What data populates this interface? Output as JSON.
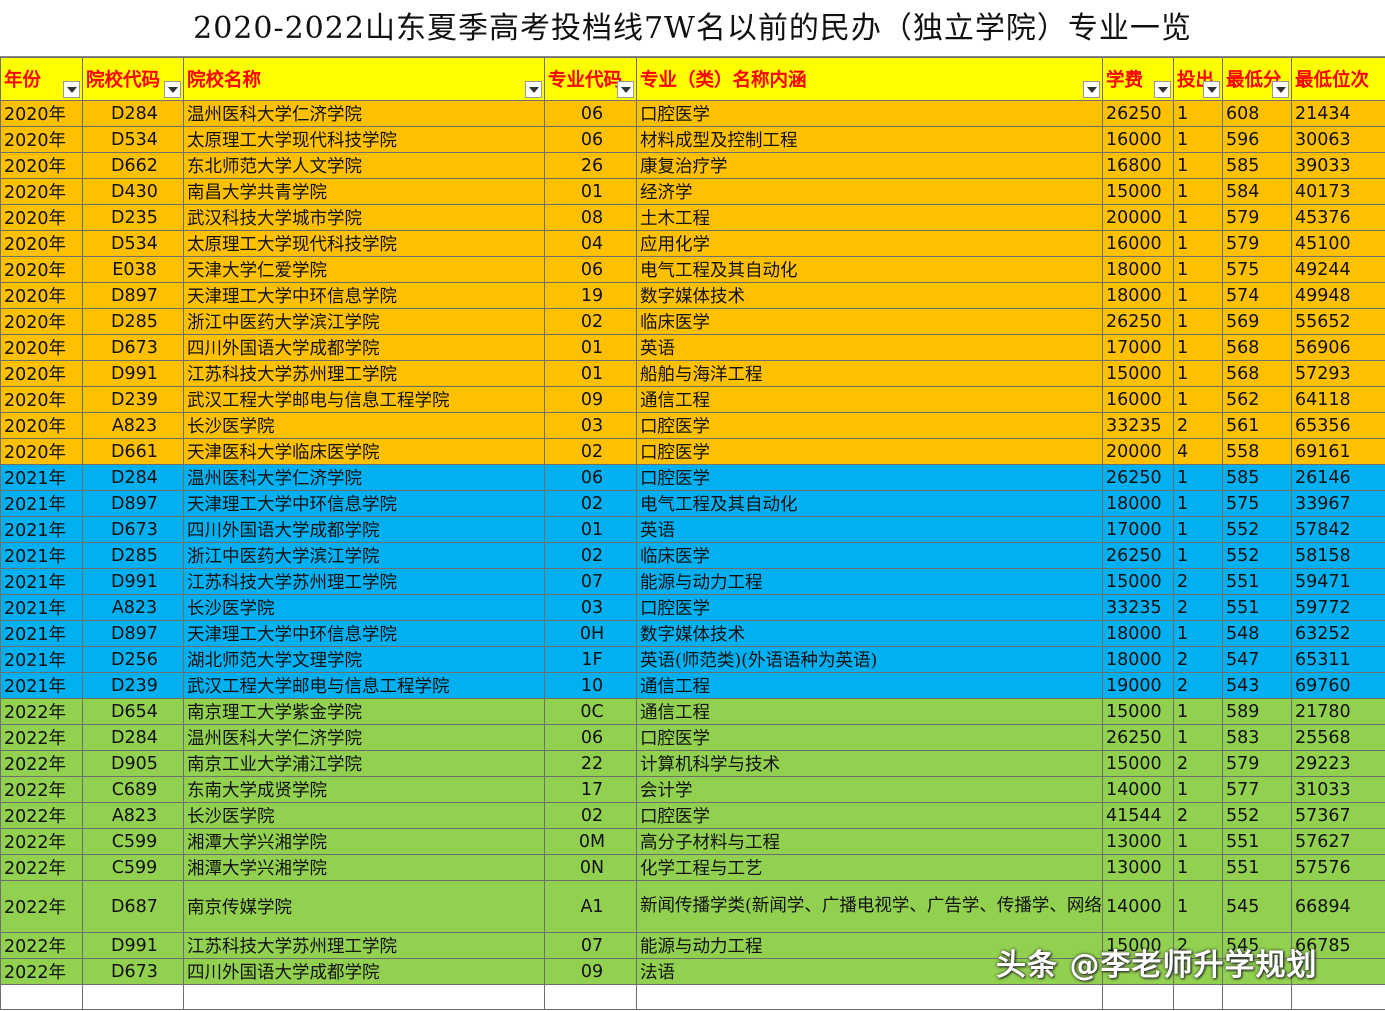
{
  "title": "2020-2022山东夏季高考投档线7W名以前的民办（独立学院）专业一览",
  "headers": [
    "年份",
    "院校代码",
    "院校名称",
    "专业代码",
    "专业（类）名称内涵",
    "学费",
    "投出",
    "最低分",
    "最低位次"
  ],
  "rows": [
    {
      "year": "2020年",
      "code": "D284",
      "school": "温州医科大学仁济学院",
      "mcode": "06",
      "major": "口腔医学",
      "fee": "26250",
      "plan": "1",
      "score": "608",
      "rank": "21434",
      "group": "y2020"
    },
    {
      "year": "2020年",
      "code": "D534",
      "school": "太原理工大学现代科技学院",
      "mcode": "06",
      "major": "材料成型及控制工程",
      "fee": "16000",
      "plan": "1",
      "score": "596",
      "rank": "30063",
      "group": "y2020"
    },
    {
      "year": "2020年",
      "code": "D662",
      "school": "东北师范大学人文学院",
      "mcode": "26",
      "major": "康复治疗学",
      "fee": "16800",
      "plan": "1",
      "score": "585",
      "rank": "39033",
      "group": "y2020"
    },
    {
      "year": "2020年",
      "code": "D430",
      "school": "南昌大学共青学院",
      "mcode": "01",
      "major": "经济学",
      "fee": "15000",
      "plan": "1",
      "score": "584",
      "rank": "40173",
      "group": "y2020"
    },
    {
      "year": "2020年",
      "code": "D235",
      "school": "武汉科技大学城市学院",
      "mcode": "08",
      "major": "土木工程",
      "fee": "20000",
      "plan": "1",
      "score": "579",
      "rank": "45376",
      "group": "y2020"
    },
    {
      "year": "2020年",
      "code": "D534",
      "school": "太原理工大学现代科技学院",
      "mcode": "04",
      "major": "应用化学",
      "fee": "16000",
      "plan": "1",
      "score": "579",
      "rank": "45100",
      "group": "y2020"
    },
    {
      "year": "2020年",
      "code": "E038",
      "school": "天津大学仁爱学院",
      "mcode": "06",
      "major": "电气工程及其自动化",
      "fee": "18000",
      "plan": "1",
      "score": "575",
      "rank": "49244",
      "group": "y2020"
    },
    {
      "year": "2020年",
      "code": "D897",
      "school": "天津理工大学中环信息学院",
      "mcode": "19",
      "major": "数字媒体技术",
      "fee": "18000",
      "plan": "1",
      "score": "574",
      "rank": "49948",
      "group": "y2020"
    },
    {
      "year": "2020年",
      "code": "D285",
      "school": "浙江中医药大学滨江学院",
      "mcode": "02",
      "major": "临床医学",
      "fee": "26250",
      "plan": "1",
      "score": "569",
      "rank": "55652",
      "group": "y2020"
    },
    {
      "year": "2020年",
      "code": "D673",
      "school": "四川外国语大学成都学院",
      "mcode": "01",
      "major": "英语",
      "fee": "17000",
      "plan": "1",
      "score": "568",
      "rank": "56906",
      "group": "y2020"
    },
    {
      "year": "2020年",
      "code": "D991",
      "school": "江苏科技大学苏州理工学院",
      "mcode": "01",
      "major": "船舶与海洋工程",
      "fee": "15000",
      "plan": "1",
      "score": "568",
      "rank": "57293",
      "group": "y2020"
    },
    {
      "year": "2020年",
      "code": "D239",
      "school": "武汉工程大学邮电与信息工程学院",
      "mcode": "09",
      "major": "通信工程",
      "fee": "16000",
      "plan": "1",
      "score": "562",
      "rank": "64118",
      "group": "y2020"
    },
    {
      "year": "2020年",
      "code": "A823",
      "school": "长沙医学院",
      "mcode": "03",
      "major": "口腔医学",
      "fee": "33235",
      "plan": "2",
      "score": "561",
      "rank": "65356",
      "group": "y2020"
    },
    {
      "year": "2020年",
      "code": "D661",
      "school": "天津医科大学临床医学院",
      "mcode": "02",
      "major": "口腔医学",
      "fee": "20000",
      "plan": "4",
      "score": "558",
      "rank": "69161",
      "group": "y2020"
    },
    {
      "year": "2021年",
      "code": "D284",
      "school": "温州医科大学仁济学院",
      "mcode": "06",
      "major": "口腔医学",
      "fee": "26250",
      "plan": "1",
      "score": "585",
      "rank": "26146",
      "group": "y2021"
    },
    {
      "year": "2021年",
      "code": "D897",
      "school": "天津理工大学中环信息学院",
      "mcode": "02",
      "major": "电气工程及其自动化",
      "fee": "18000",
      "plan": "1",
      "score": "575",
      "rank": "33967",
      "group": "y2021"
    },
    {
      "year": "2021年",
      "code": "D673",
      "school": "四川外国语大学成都学院",
      "mcode": "01",
      "major": "英语",
      "fee": "17000",
      "plan": "1",
      "score": "552",
      "rank": "57842",
      "group": "y2021"
    },
    {
      "year": "2021年",
      "code": "D285",
      "school": "浙江中医药大学滨江学院",
      "mcode": "02",
      "major": "临床医学",
      "fee": "26250",
      "plan": "1",
      "score": "552",
      "rank": "58158",
      "group": "y2021"
    },
    {
      "year": "2021年",
      "code": "D991",
      "school": "江苏科技大学苏州理工学院",
      "mcode": "07",
      "major": "能源与动力工程",
      "fee": "15000",
      "plan": "2",
      "score": "551",
      "rank": "59471",
      "group": "y2021"
    },
    {
      "year": "2021年",
      "code": "A823",
      "school": "长沙医学院",
      "mcode": "03",
      "major": "口腔医学",
      "fee": "33235",
      "plan": "2",
      "score": "551",
      "rank": "59772",
      "group": "y2021"
    },
    {
      "year": "2021年",
      "code": "D897",
      "school": "天津理工大学中环信息学院",
      "mcode": "0H",
      "major": "数字媒体技术",
      "fee": "18000",
      "plan": "1",
      "score": "548",
      "rank": "63252",
      "group": "y2021"
    },
    {
      "year": "2021年",
      "code": "D256",
      "school": "湖北师范大学文理学院",
      "mcode": "1F",
      "major": "英语(师范类)(外语语种为英语)",
      "fee": "18000",
      "plan": "2",
      "score": "547",
      "rank": "65311",
      "group": "y2021"
    },
    {
      "year": "2021年",
      "code": "D239",
      "school": "武汉工程大学邮电与信息工程学院",
      "mcode": "10",
      "major": "通信工程",
      "fee": "19000",
      "plan": "2",
      "score": "543",
      "rank": "69760",
      "group": "y2021"
    },
    {
      "year": "2022年",
      "code": "D654",
      "school": "南京理工大学紫金学院",
      "mcode": "0C",
      "major": "通信工程",
      "fee": "15000",
      "plan": "1",
      "score": "589",
      "rank": "21780",
      "group": "y2022"
    },
    {
      "year": "2022年",
      "code": "D284",
      "school": "温州医科大学仁济学院",
      "mcode": "06",
      "major": "口腔医学",
      "fee": "26250",
      "plan": "1",
      "score": "583",
      "rank": "25568",
      "group": "y2022"
    },
    {
      "year": "2022年",
      "code": "D905",
      "school": "南京工业大学浦江学院",
      "mcode": "22",
      "major": "计算机科学与技术",
      "fee": "15000",
      "plan": "2",
      "score": "579",
      "rank": "29223",
      "group": "y2022"
    },
    {
      "year": "2022年",
      "code": "C689",
      "school": "东南大学成贤学院",
      "mcode": "17",
      "major": "会计学",
      "fee": "14000",
      "plan": "1",
      "score": "577",
      "rank": "31033",
      "group": "y2022"
    },
    {
      "year": "2022年",
      "code": "A823",
      "school": "长沙医学院",
      "mcode": "02",
      "major": "口腔医学",
      "fee": "41544",
      "plan": "2",
      "score": "552",
      "rank": "57367",
      "group": "y2022"
    },
    {
      "year": "2022年",
      "code": "C599",
      "school": "湘潭大学兴湘学院",
      "mcode": "0M",
      "major": "高分子材料与工程",
      "fee": "13000",
      "plan": "1",
      "score": "551",
      "rank": "57627",
      "group": "y2022"
    },
    {
      "year": "2022年",
      "code": "C599",
      "school": "湘潭大学兴湘学院",
      "mcode": "0N",
      "major": "化学工程与工艺",
      "fee": "13000",
      "plan": "1",
      "score": "551",
      "rank": "57576",
      "group": "y2022"
    },
    {
      "year": "2022年",
      "code": "D687",
      "school": "南京传媒学院",
      "mcode": "A1",
      "major": "新闻传播学类(新闻学、广播电视学、广告学、传播学、网络与新媒体、数字出版)",
      "fee": "14000",
      "plan": "1",
      "score": "545",
      "rank": "66894",
      "group": "y2022",
      "tall": true
    },
    {
      "year": "2022年",
      "code": "D991",
      "school": "江苏科技大学苏州理工学院",
      "mcode": "07",
      "major": "能源与动力工程",
      "fee": "15000",
      "plan": "2",
      "score": "545",
      "rank": "66785",
      "group": "y2022"
    },
    {
      "year": "2022年",
      "code": "D673",
      "school": "四川外国语大学成都学院",
      "mcode": "09",
      "major": "法语",
      "fee": "",
      "plan": "",
      "score": "",
      "rank": "",
      "group": "y2022"
    }
  ],
  "watermark": "头条 @李老师升学规划",
  "colors": {
    "y2020": "#ffc000",
    "y2021": "#00b0f0",
    "y2022": "#92d050",
    "header_bg": "#ffff00",
    "header_text": "#ff0000"
  }
}
